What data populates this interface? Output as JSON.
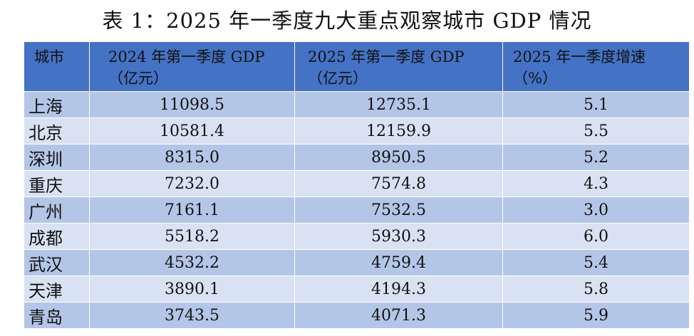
{
  "title": "表 1：2025 年一季度九大重点观察城市 GDP 情况",
  "table": {
    "headers": [
      {
        "line1": "城市",
        "line2": ""
      },
      {
        "line1": "2024 年第一季度 GDP",
        "line2": "（亿元）"
      },
      {
        "line1": "2025 年第一季度 GDP",
        "line2": "（亿元）"
      },
      {
        "line1": "2025 年一季度增速",
        "line2": "（%）"
      }
    ],
    "rows": [
      {
        "city": "上海",
        "gdp_2024": "11098.5",
        "gdp_2025": "12735.1",
        "growth": "5.1"
      },
      {
        "city": "北京",
        "gdp_2024": "10581.4",
        "gdp_2025": "12159.9",
        "growth": "5.5"
      },
      {
        "city": "深圳",
        "gdp_2024": "8315.0",
        "gdp_2025": "8950.5",
        "growth": "5.2"
      },
      {
        "city": "重庆",
        "gdp_2024": "7232.0",
        "gdp_2025": "7574.8",
        "growth": "4.3"
      },
      {
        "city": "广州",
        "gdp_2024": "7161.1",
        "gdp_2025": "7532.5",
        "growth": "3.0"
      },
      {
        "city": "成都",
        "gdp_2024": "5518.2",
        "gdp_2025": "5930.3",
        "growth": "6.0"
      },
      {
        "city": "武汉",
        "gdp_2024": "4532.2",
        "gdp_2025": "4759.4",
        "growth": "5.4"
      },
      {
        "city": "天津",
        "gdp_2024": "3890.1",
        "gdp_2025": "4194.3",
        "growth": "5.8"
      },
      {
        "city": "青岛",
        "gdp_2024": "3743.5",
        "gdp_2025": "4071.3",
        "growth": "5.9"
      }
    ]
  },
  "colors": {
    "header_bg": "#4472c4",
    "row_odd_bg": "#b4c6e7",
    "row_even_bg": "#d9e2f3"
  }
}
